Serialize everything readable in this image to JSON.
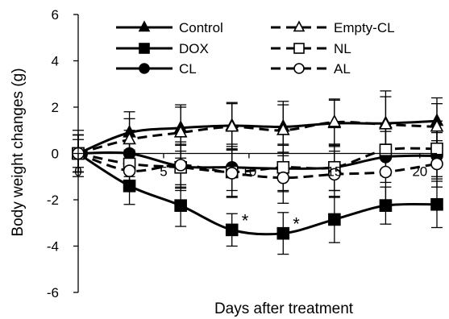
{
  "chart_data": {
    "type": "line",
    "title": "",
    "xlabel": "Days after treatment",
    "ylabel": "Body weight changes (g)",
    "xlim": [
      0,
      21
    ],
    "ylim": [
      -6,
      6
    ],
    "x_ticks": [
      0,
      5,
      10,
      15,
      20
    ],
    "y_ticks": [
      -6,
      -4,
      -2,
      0,
      2,
      4,
      6
    ],
    "x_tick_labels": [
      "0",
      "5",
      "10",
      "15",
      "20"
    ],
    "y_tick_labels": [
      "-6",
      "-4",
      "-2",
      "0",
      "2",
      "4",
      "6"
    ],
    "grid": false,
    "legend_position": "top",
    "x": [
      0,
      3,
      6,
      9,
      12,
      15,
      18,
      21
    ],
    "series": [
      {
        "name": "Control",
        "marker": "triangle-filled",
        "line": "solid",
        "values": [
          0,
          0.9,
          1.1,
          1.2,
          1.15,
          1.3,
          1.3,
          1.4
        ],
        "errors": [
          1.0,
          0.9,
          1.0,
          1.0,
          1.1,
          1.0,
          1.4,
          1.0
        ]
      },
      {
        "name": "DOX",
        "marker": "square-filled",
        "line": "solid",
        "values": [
          0,
          -1.4,
          -2.25,
          -3.3,
          -3.45,
          -2.85,
          -2.25,
          -2.2
        ],
        "errors": [
          0.6,
          0.8,
          0.9,
          0.7,
          0.9,
          1.0,
          0.8,
          1.0
        ]
      },
      {
        "name": "CL",
        "marker": "circle-filled",
        "line": "solid",
        "values": [
          0,
          0.0,
          -0.55,
          -0.6,
          -0.65,
          -0.6,
          -0.15,
          -0.1
        ],
        "errors": [
          0.8,
          1.0,
          0.9,
          1.0,
          1.0,
          1.0,
          1.1,
          1.0
        ]
      },
      {
        "name": "Empty-CL",
        "marker": "triangle-open",
        "line": "dashed",
        "values": [
          0,
          0.6,
          0.9,
          1.15,
          1.0,
          1.35,
          1.25,
          1.15
        ],
        "errors": [
          0.8,
          0.9,
          1.1,
          1.0,
          1.1,
          1.0,
          1.2,
          1.0
        ]
      },
      {
        "name": "NL",
        "marker": "square-open",
        "line": "dashed",
        "values": [
          0,
          -0.45,
          -0.6,
          -0.8,
          -0.6,
          -0.6,
          0.15,
          0.2
        ],
        "errors": [
          0.8,
          0.9,
          1.0,
          1.1,
          1.0,
          1.0,
          1.1,
          1.2
        ]
      },
      {
        "name": "AL",
        "marker": "circle-open",
        "line": "dashed",
        "values": [
          0,
          -0.75,
          -0.5,
          -0.85,
          -1.05,
          -0.9,
          -0.8,
          -0.45
        ],
        "errors": [
          0.8,
          0.9,
          1.0,
          1.0,
          1.1,
          1.0,
          1.2,
          1.0
        ]
      }
    ],
    "annotations": [
      {
        "text": "*",
        "x": 9,
        "y": -3.3
      },
      {
        "text": "*",
        "x": 12,
        "y": -3.45
      }
    ]
  }
}
